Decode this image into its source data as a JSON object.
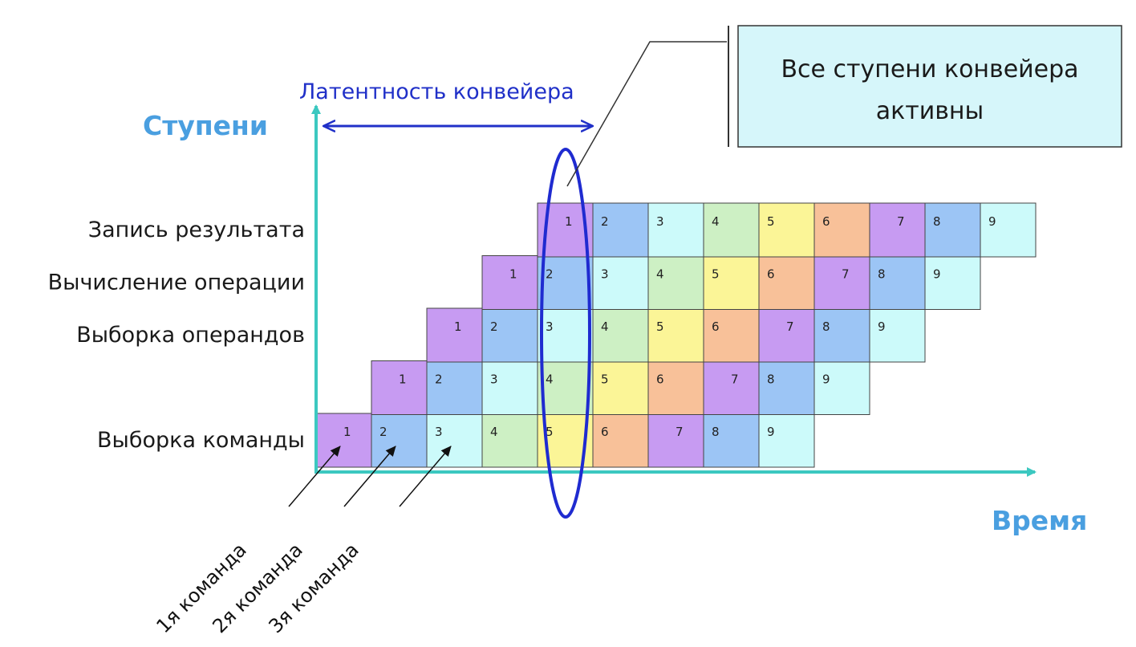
{
  "axes": {
    "y_title": "Ступени",
    "x_title": "Время",
    "color": "#3cc8c0",
    "title_color": "#4a9fe0"
  },
  "latency": {
    "label": "Латентность конвейера",
    "color": "#2030c8"
  },
  "callout": {
    "line1": "Все ступени конвейера",
    "line2": "активны",
    "fill": "#d6f6fa"
  },
  "stages": [
    {
      "label": "Выборка команды",
      "start_slot": 0
    },
    {
      "label": "",
      "start_slot": 1
    },
    {
      "label": "Выборка операндов",
      "start_slot": 2
    },
    {
      "label": "Вычисление операции",
      "start_slot": 3
    },
    {
      "label": "Запись результата",
      "start_slot": 4
    }
  ],
  "instructions": [
    "1",
    "2",
    "3",
    "4",
    "5",
    "6",
    "7",
    "8",
    "9"
  ],
  "instruction_colors": [
    "#c79bf2",
    "#9cc5f5",
    "#ccfafa",
    "#cdf0c4",
    "#fbf597",
    "#f8c199",
    "#c79bf2",
    "#9cc5f5",
    "#ccfafa"
  ],
  "highlight": {
    "slot": 4,
    "color": "#1f2bd0"
  },
  "commands": [
    {
      "label": "1я команда",
      "slot": 0
    },
    {
      "label": "2я команда",
      "slot": 1
    },
    {
      "label": "3я команда",
      "slot": 2
    }
  ]
}
